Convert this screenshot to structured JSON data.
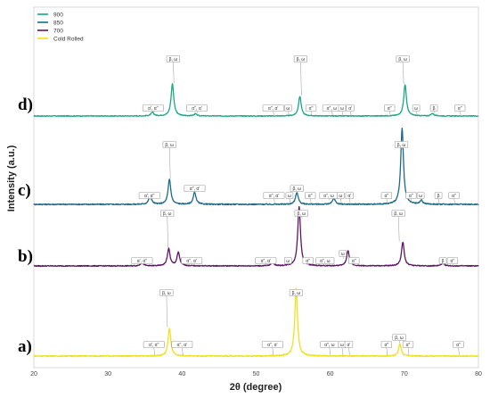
{
  "chart_data": {
    "type": "line",
    "title": "",
    "xlabel": "2θ (degree)",
    "ylabel": "Intensity (a.u.)",
    "xlim": [
      20,
      80
    ],
    "x_ticks": [
      20,
      30,
      40,
      50,
      60,
      70,
      80
    ],
    "grid": false,
    "legend_position": "top-left",
    "series": [
      {
        "name": "900",
        "panel": "d)",
        "color": "#17a882",
        "peaks": [
          [
            36.0,
            0.07
          ],
          [
            38.7,
            0.62
          ],
          [
            41.8,
            0.04
          ],
          [
            55.9,
            0.38
          ],
          [
            70.1,
            0.6
          ],
          [
            73.8,
            0.05
          ]
        ]
      },
      {
        "name": "850",
        "panel": "c)",
        "color": "#1d6a85",
        "peaks": [
          [
            35.7,
            0.12
          ],
          [
            38.3,
            0.33
          ],
          [
            41.7,
            0.16
          ],
          [
            55.5,
            0.16
          ],
          [
            60.5,
            0.08
          ],
          [
            69.7,
            1.0
          ],
          [
            72.3,
            0.05
          ]
        ]
      },
      {
        "name": "700",
        "panel": "b)",
        "color": "#5b1763",
        "peaks": [
          [
            34.6,
            0.06
          ],
          [
            38.2,
            0.28
          ],
          [
            39.5,
            0.22
          ],
          [
            52.2,
            0.06
          ],
          [
            55.8,
            0.98
          ],
          [
            62.4,
            0.25
          ],
          [
            69.8,
            0.39
          ],
          [
            75.2,
            0.05
          ]
        ]
      },
      {
        "name": "Cold Rolled",
        "panel": "a)",
        "color": "#f3df1c",
        "peaks": [
          [
            38.3,
            0.37
          ],
          [
            55.4,
            0.9
          ],
          [
            69.4,
            0.16
          ]
        ]
      }
    ],
    "annotations": {
      "d)": [
        {
          "label": "α', α''",
          "x": 36.1
        },
        {
          "label": "β, ω",
          "x": 38.8
        },
        {
          "label": "α'', α'",
          "x": 42.0
        },
        {
          "label": "α'', α'",
          "x": 52.3
        },
        {
          "label": "ω",
          "x": 54.3
        },
        {
          "label": "β, ω",
          "x": 56.0
        },
        {
          "label": "α''",
          "x": 57.4
        },
        {
          "label": "α'', ω",
          "x": 60.2
        },
        {
          "label": "ω",
          "x": 61.6
        },
        {
          "label": "α'",
          "x": 62.7
        },
        {
          "label": "α''",
          "x": 68.0
        },
        {
          "label": "β, ω",
          "x": 69.8
        },
        {
          "label": "ω",
          "x": 71.6
        },
        {
          "label": "β",
          "x": 74.0
        },
        {
          "label": "α''",
          "x": 77.5
        }
      ],
      "c)": [
        {
          "label": "α', α''",
          "x": 35.6
        },
        {
          "label": "β, ω",
          "x": 38.3
        },
        {
          "label": "α'', α'",
          "x": 41.7
        },
        {
          "label": "α'', α'",
          "x": 52.4
        },
        {
          "label": "ω",
          "x": 54.5
        },
        {
          "label": "β, ω",
          "x": 55.5
        },
        {
          "label": "α''",
          "x": 57.3
        },
        {
          "label": "α'', ω",
          "x": 59.8
        },
        {
          "label": "ω",
          "x": 61.4
        },
        {
          "label": "α'",
          "x": 62.6
        },
        {
          "label": "α''",
          "x": 67.6
        },
        {
          "label": "β, ω",
          "x": 69.6
        },
        {
          "label": "α''",
          "x": 70.9
        },
        {
          "label": "ω",
          "x": 72.2
        },
        {
          "label": "β",
          "x": 74.6
        },
        {
          "label": "α''",
          "x": 76.7
        }
      ],
      "b)": [
        {
          "label": "α', α''",
          "x": 34.6
        },
        {
          "label": "β, ω",
          "x": 38.0
        },
        {
          "label": "α'', α'",
          "x": 41.3
        },
        {
          "label": "α'', α'",
          "x": 51.3
        },
        {
          "label": "ω",
          "x": 54.3
        },
        {
          "label": "β, ω",
          "x": 56.1
        },
        {
          "label": "α''",
          "x": 57.0
        },
        {
          "label": "α'', ω",
          "x": 59.3
        },
        {
          "label": "ω",
          "x": 61.7
        },
        {
          "label": "α''",
          "x": 63.2
        },
        {
          "label": "β, ω",
          "x": 69.2
        },
        {
          "label": "β",
          "x": 75.2
        },
        {
          "label": "α''",
          "x": 76.5
        }
      ],
      "a)": [
        {
          "label": "α', α''",
          "x": 36.2
        },
        {
          "label": "β, ω",
          "x": 37.9
        },
        {
          "label": "α'', α'",
          "x": 40.0
        },
        {
          "label": "α'', α'",
          "x": 52.2
        },
        {
          "label": "β, ω",
          "x": 55.4
        },
        {
          "label": "α'', ω",
          "x": 59.9
        },
        {
          "label": "ω",
          "x": 61.6
        },
        {
          "label": "α'",
          "x": 62.5
        },
        {
          "label": "α''",
          "x": 67.6
        },
        {
          "label": "β, ω",
          "x": 69.3
        },
        {
          "label": "α''",
          "x": 70.5
        },
        {
          "label": "α''",
          "x": 77.3
        }
      ]
    }
  }
}
